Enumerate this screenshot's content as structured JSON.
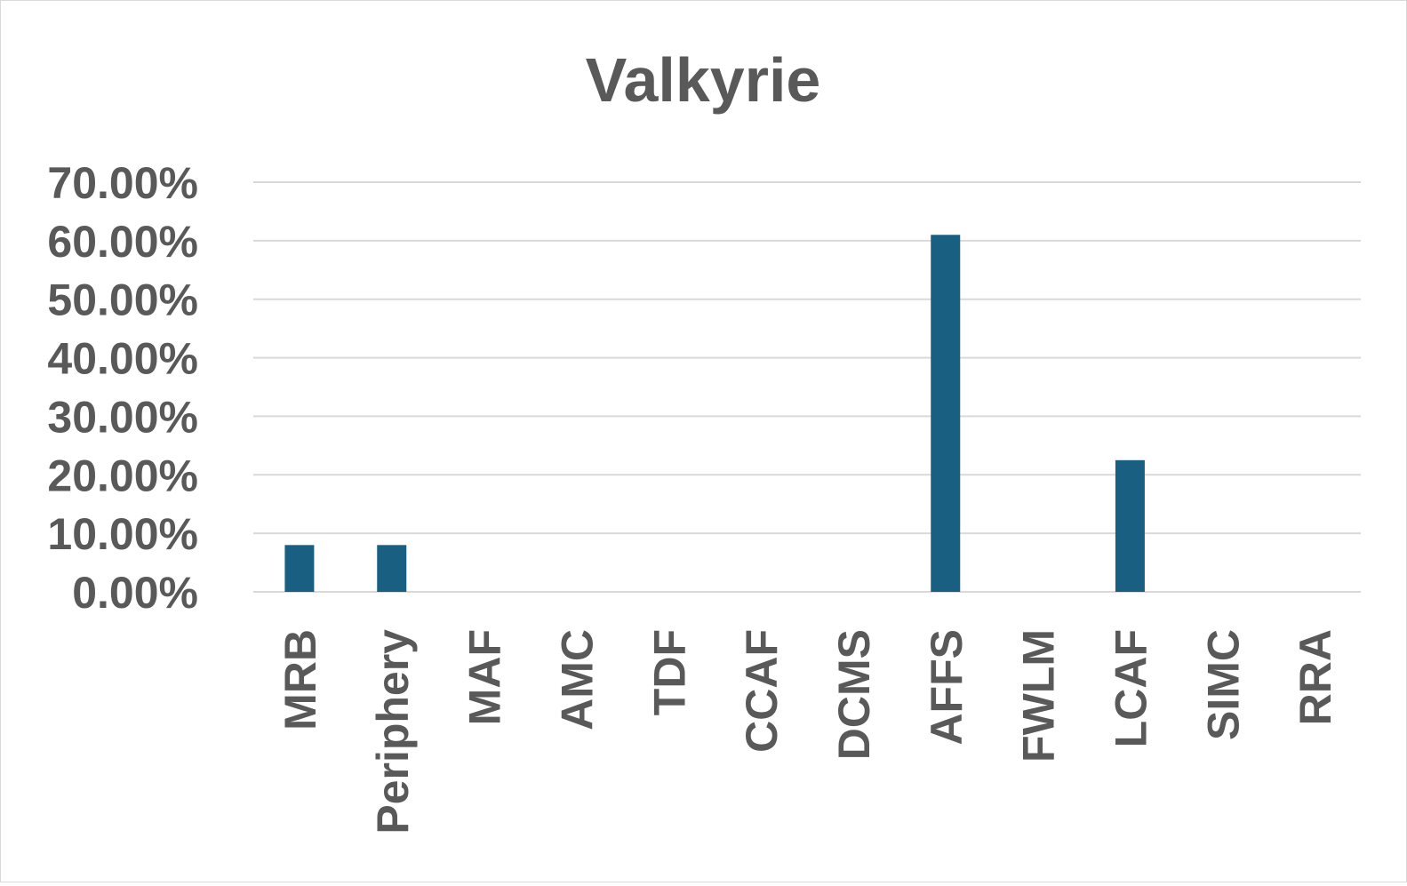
{
  "chart_data": {
    "type": "bar",
    "title": "Valkyrie",
    "xlabel": "",
    "ylabel": "",
    "categories": [
      "MRB",
      "Periphery",
      "MAF",
      "AMC",
      "TDF",
      "CCAF",
      "DCMS",
      "AFFS",
      "FWLM",
      "LCAF",
      "SIMC",
      "RRA"
    ],
    "values": [
      0.08,
      0.08,
      0,
      0,
      0,
      0,
      0,
      0.61,
      0,
      0.225,
      0,
      0
    ],
    "ylim": [
      0,
      0.7
    ],
    "yticks": [
      "0.00%",
      "10.00%",
      "20.00%",
      "30.00%",
      "40.00%",
      "50.00%",
      "60.00%",
      "70.00%"
    ],
    "grid": true,
    "legend": "none",
    "bar_color": "#185f82",
    "grid_color": "#d9d9d9",
    "text_color": "#595959"
  }
}
